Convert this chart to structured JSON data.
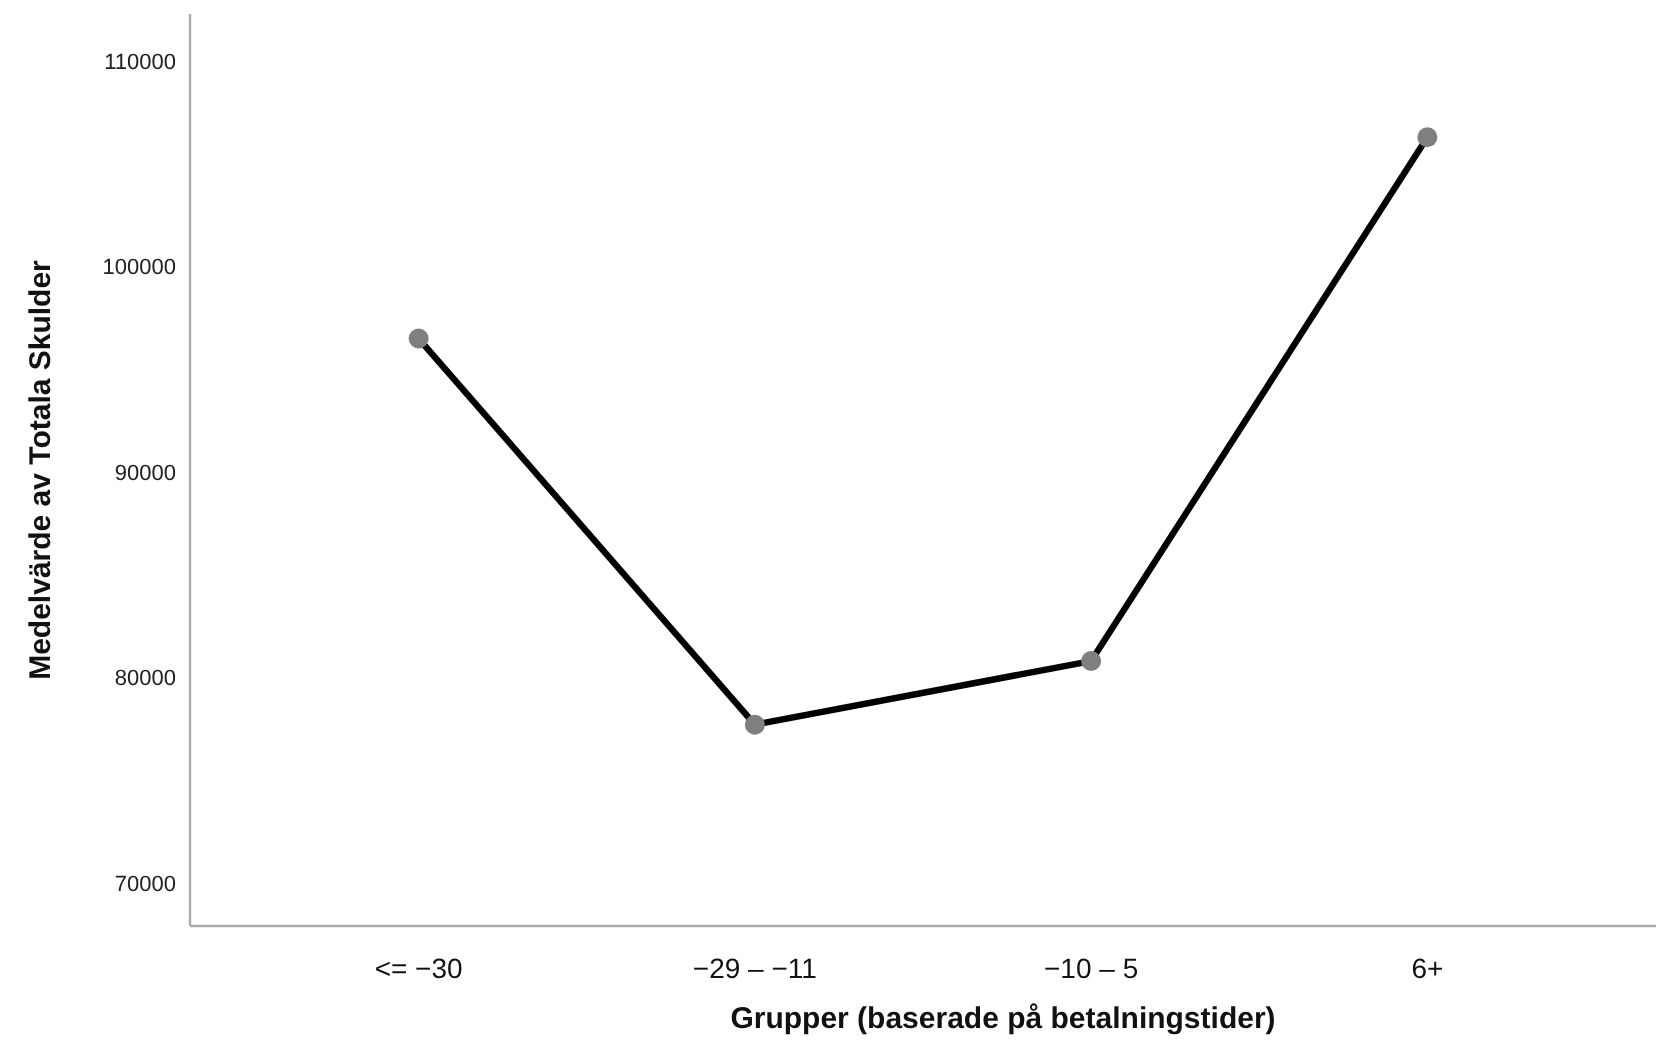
{
  "chart_data": {
    "type": "line",
    "xlabel": "Grupper (baserade på betalningstider)",
    "ylabel": "Medelvärde av Totala Skulder",
    "categories": [
      "<= −30",
      "−29 – −11",
      "−10 – 5",
      "6+"
    ],
    "series": [
      {
        "color": "#000000",
        "values": [
          96500,
          77700,
          80800,
          106300
        ]
      }
    ],
    "ylim": [
      67900,
      112300
    ],
    "yticks": [
      70000,
      80000,
      90000,
      100000,
      110000
    ],
    "grid": false,
    "marker": "circle",
    "line_style": "solid"
  }
}
